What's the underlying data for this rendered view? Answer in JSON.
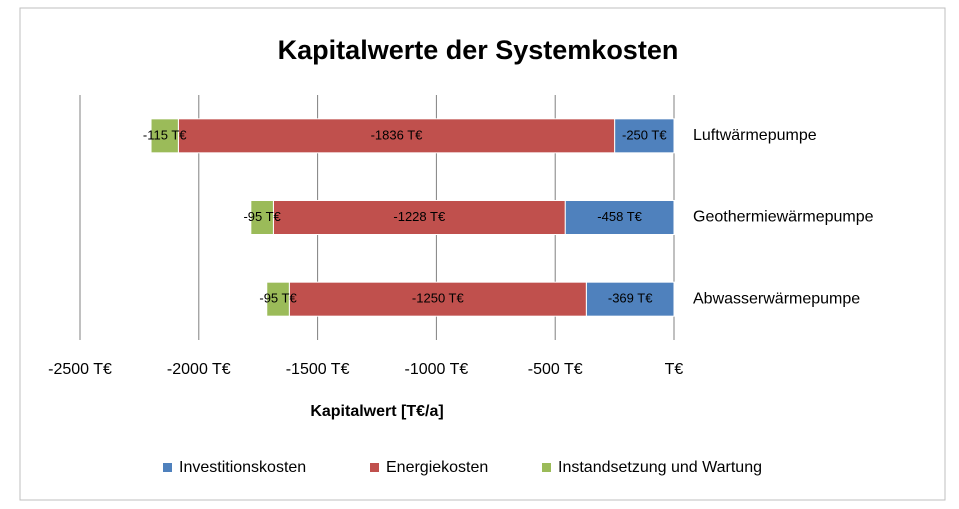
{
  "chart_data": {
    "type": "stacked-barh",
    "title": "Kapitalwerte der Systemkosten",
    "x_label": "Kapitalwert [T€/a]",
    "categories": [
      "Luftwärmepumpe",
      "Geothermiewärmepumpe",
      "Abwasserwärmepumpe"
    ],
    "series": [
      {
        "name": "Investitionskosten",
        "color": "#4f81bd",
        "values": [
          -250,
          -458,
          -369
        ],
        "value_labels": [
          "-250 T€",
          "-458 T€",
          "-369 T€"
        ]
      },
      {
        "name": "Energiekosten",
        "color": "#c0504d",
        "values": [
          -1836,
          -1228,
          -1250
        ],
        "value_labels": [
          "-1836 T€",
          "-1228 T€",
          "-1250 T€"
        ]
      },
      {
        "name": "Instandsetzung und Wartung",
        "color": "#9bbb59",
        "values": [
          -115,
          -95,
          -95
        ],
        "value_labels": [
          "-115 T€",
          "-95 T€",
          "-95 T€"
        ]
      }
    ],
    "xlim": [
      -2500,
      0
    ],
    "xticks": [
      {
        "value": -2500,
        "label": "-2500 T€"
      },
      {
        "value": -2000,
        "label": "-2000 T€"
      },
      {
        "value": -1500,
        "label": "-1500 T€"
      },
      {
        "value": -1000,
        "label": "-1000 T€"
      },
      {
        "value": -500,
        "label": "-500 T€"
      },
      {
        "value": 0,
        "label": "T€"
      }
    ],
    "grid": true,
    "legend": "bottom"
  }
}
